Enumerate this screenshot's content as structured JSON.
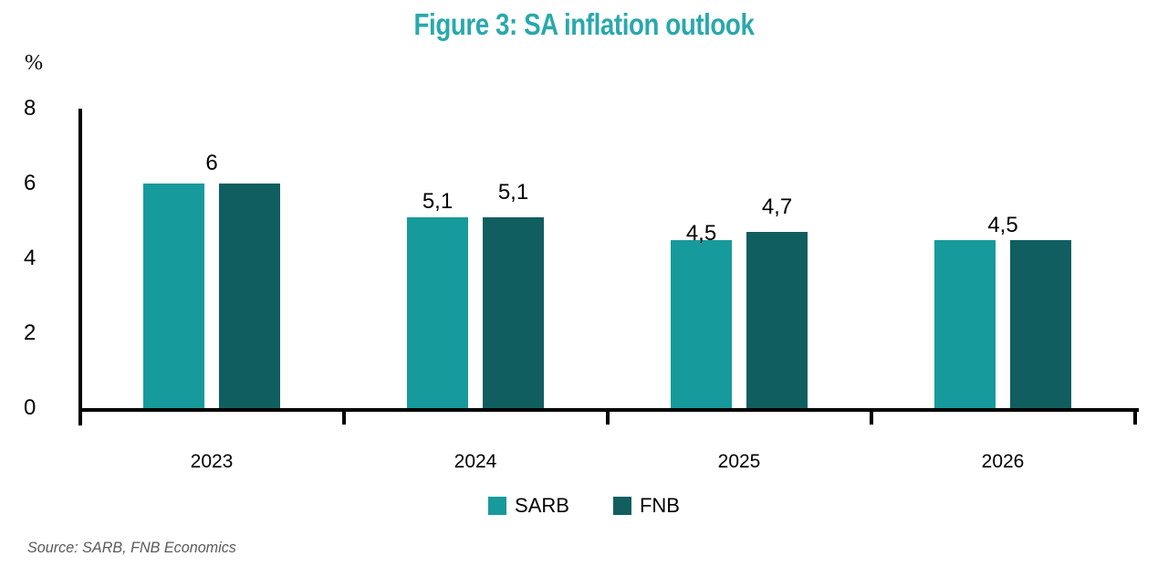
{
  "chart": {
    "title": "Figure 3: SA inflation outlook",
    "y_unit_label": "%",
    "source_note": "Source: SARB, FNB Economics",
    "title_color": "#2AA8AC",
    "axis_color": "#000000",
    "source_text_color": "#595959"
  },
  "chart_data": {
    "type": "bar",
    "title": "Figure 3: SA inflation outlook",
    "categories": [
      "2023",
      "2024",
      "2025",
      "2026"
    ],
    "series": [
      {
        "name": "SARB",
        "color": "#179A9B",
        "values": [
          6,
          5.1,
          4.5,
          4.5
        ]
      },
      {
        "name": "FNB",
        "color": "#105E60",
        "values": [
          6,
          5.1,
          4.7,
          4.5
        ]
      }
    ],
    "value_labels": [
      {
        "text": "6",
        "category_index": 0,
        "anchor": "group",
        "rise": 34
      },
      {
        "text": "5,1",
        "category_index": 1,
        "anchor": "SARB",
        "rise": 29
      },
      {
        "text": "5,1",
        "category_index": 1,
        "anchor": "FNB",
        "rise": 39
      },
      {
        "text": "4,5",
        "category_index": 2,
        "anchor": "SARB",
        "rise": 19
      },
      {
        "text": "4,7",
        "category_index": 2,
        "anchor": "FNB",
        "rise": 39
      },
      {
        "text": "4,5",
        "category_index": 3,
        "anchor": "group",
        "rise": 28
      }
    ],
    "xlabel": "",
    "ylabel": "%",
    "ylim": [
      0,
      8
    ],
    "y_ticks": [
      0,
      2,
      4,
      6,
      8
    ],
    "grid": false,
    "legend_position": "bottom",
    "decimal_separator": ","
  }
}
